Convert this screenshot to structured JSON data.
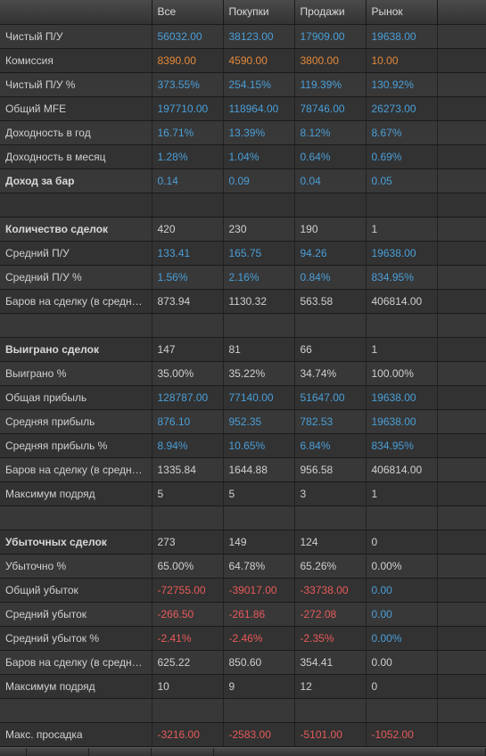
{
  "headers": [
    "Все",
    "Покупки",
    "Продажи",
    "Рынок"
  ],
  "rows": [
    {
      "label": "Чистый П/У",
      "bold": false,
      "vals": [
        {
          "t": "56032.00",
          "c": "blue"
        },
        {
          "t": "38123.00",
          "c": "blue"
        },
        {
          "t": "17909.00",
          "c": "blue"
        },
        {
          "t": "19638.00",
          "c": "blue"
        }
      ]
    },
    {
      "label": "Комиссия",
      "bold": false,
      "vals": [
        {
          "t": "8390.00",
          "c": "orange"
        },
        {
          "t": "4590.00",
          "c": "orange"
        },
        {
          "t": "3800.00",
          "c": "orange"
        },
        {
          "t": "10.00",
          "c": "orange"
        }
      ]
    },
    {
      "label": "Чистый П/У %",
      "bold": false,
      "vals": [
        {
          "t": "373.55%",
          "c": "blue"
        },
        {
          "t": "254.15%",
          "c": "blue"
        },
        {
          "t": "119.39%",
          "c": "blue"
        },
        {
          "t": "130.92%",
          "c": "blue"
        }
      ]
    },
    {
      "label": "Общий MFE",
      "bold": false,
      "vals": [
        {
          "t": "197710.00",
          "c": "blue"
        },
        {
          "t": "118964.00",
          "c": "blue"
        },
        {
          "t": "78746.00",
          "c": "blue"
        },
        {
          "t": "26273.00",
          "c": "blue"
        }
      ]
    },
    {
      "label": "Доходность в год",
      "bold": false,
      "vals": [
        {
          "t": "16.71%",
          "c": "blue"
        },
        {
          "t": "13.39%",
          "c": "blue"
        },
        {
          "t": "8.12%",
          "c": "blue"
        },
        {
          "t": "8.67%",
          "c": "blue"
        }
      ]
    },
    {
      "label": "Доходность в месяц",
      "bold": false,
      "vals": [
        {
          "t": "1.28%",
          "c": "blue"
        },
        {
          "t": "1.04%",
          "c": "blue"
        },
        {
          "t": "0.64%",
          "c": "blue"
        },
        {
          "t": "0.69%",
          "c": "blue"
        }
      ]
    },
    {
      "label": "Доход за бар",
      "bold": true,
      "vals": [
        {
          "t": "0.14",
          "c": "blue"
        },
        {
          "t": "0.09",
          "c": "blue"
        },
        {
          "t": "0.04",
          "c": "blue"
        },
        {
          "t": "0.05",
          "c": "blue"
        }
      ]
    },
    {
      "label": "",
      "bold": false,
      "vals": []
    },
    {
      "label": "Количество сделок",
      "bold": true,
      "vals": [
        {
          "t": "420",
          "c": "white"
        },
        {
          "t": "230",
          "c": "white"
        },
        {
          "t": "190",
          "c": "white"
        },
        {
          "t": "1",
          "c": "white"
        }
      ]
    },
    {
      "label": "Средний П/У",
      "bold": false,
      "vals": [
        {
          "t": "133.41",
          "c": "blue"
        },
        {
          "t": "165.75",
          "c": "blue"
        },
        {
          "t": "94.26",
          "c": "blue"
        },
        {
          "t": "19638.00",
          "c": "blue"
        }
      ]
    },
    {
      "label": "Средний П/У %",
      "bold": false,
      "vals": [
        {
          "t": "1.56%",
          "c": "blue"
        },
        {
          "t": "2.16%",
          "c": "blue"
        },
        {
          "t": "0.84%",
          "c": "blue"
        },
        {
          "t": "834.95%",
          "c": "blue"
        }
      ]
    },
    {
      "label": "Баров на сделку (в среднем)",
      "bold": false,
      "vals": [
        {
          "t": "873.94",
          "c": "white"
        },
        {
          "t": "1130.32",
          "c": "white"
        },
        {
          "t": "563.58",
          "c": "white"
        },
        {
          "t": "406814.00",
          "c": "white"
        }
      ]
    },
    {
      "label": "",
      "bold": false,
      "vals": []
    },
    {
      "label": "Выиграно сделок",
      "bold": true,
      "vals": [
        {
          "t": "147",
          "c": "white"
        },
        {
          "t": "81",
          "c": "white"
        },
        {
          "t": "66",
          "c": "white"
        },
        {
          "t": "1",
          "c": "white"
        }
      ]
    },
    {
      "label": "Выиграно %",
      "bold": false,
      "vals": [
        {
          "t": "35.00%",
          "c": "white"
        },
        {
          "t": "35.22%",
          "c": "white"
        },
        {
          "t": "34.74%",
          "c": "white"
        },
        {
          "t": "100.00%",
          "c": "white"
        }
      ]
    },
    {
      "label": "Общая прибыль",
      "bold": false,
      "vals": [
        {
          "t": "128787.00",
          "c": "blue"
        },
        {
          "t": "77140.00",
          "c": "blue"
        },
        {
          "t": "51647.00",
          "c": "blue"
        },
        {
          "t": "19638.00",
          "c": "blue"
        }
      ]
    },
    {
      "label": "Средняя прибыль",
      "bold": false,
      "vals": [
        {
          "t": "876.10",
          "c": "blue"
        },
        {
          "t": "952.35",
          "c": "blue"
        },
        {
          "t": "782.53",
          "c": "blue"
        },
        {
          "t": "19638.00",
          "c": "blue"
        }
      ]
    },
    {
      "label": "Средняя прибыль %",
      "bold": false,
      "vals": [
        {
          "t": "8.94%",
          "c": "blue"
        },
        {
          "t": "10.65%",
          "c": "blue"
        },
        {
          "t": "6.84%",
          "c": "blue"
        },
        {
          "t": "834.95%",
          "c": "blue"
        }
      ]
    },
    {
      "label": "Баров на сделку (в среднем)",
      "bold": false,
      "vals": [
        {
          "t": "1335.84",
          "c": "white"
        },
        {
          "t": "1644.88",
          "c": "white"
        },
        {
          "t": "956.58",
          "c": "white"
        },
        {
          "t": "406814.00",
          "c": "white"
        }
      ]
    },
    {
      "label": "Максимум подряд",
      "bold": false,
      "vals": [
        {
          "t": "5",
          "c": "white"
        },
        {
          "t": "5",
          "c": "white"
        },
        {
          "t": "3",
          "c": "white"
        },
        {
          "t": "1",
          "c": "white"
        }
      ]
    },
    {
      "label": "",
      "bold": false,
      "vals": []
    },
    {
      "label": "Убыточных сделок",
      "bold": true,
      "vals": [
        {
          "t": "273",
          "c": "white"
        },
        {
          "t": "149",
          "c": "white"
        },
        {
          "t": "124",
          "c": "white"
        },
        {
          "t": "0",
          "c": "white"
        }
      ]
    },
    {
      "label": "Убыточно %",
      "bold": false,
      "vals": [
        {
          "t": "65.00%",
          "c": "white"
        },
        {
          "t": "64.78%",
          "c": "white"
        },
        {
          "t": "65.26%",
          "c": "white"
        },
        {
          "t": "0.00%",
          "c": "white"
        }
      ]
    },
    {
      "label": "Общий убыток",
      "bold": false,
      "vals": [
        {
          "t": "-72755.00",
          "c": "red"
        },
        {
          "t": "-39017.00",
          "c": "red"
        },
        {
          "t": "-33738.00",
          "c": "red"
        },
        {
          "t": "0.00",
          "c": "blue"
        }
      ]
    },
    {
      "label": "Средний убыток",
      "bold": false,
      "vals": [
        {
          "t": "-266.50",
          "c": "red"
        },
        {
          "t": "-261.86",
          "c": "red"
        },
        {
          "t": "-272.08",
          "c": "red"
        },
        {
          "t": "0.00",
          "c": "blue"
        }
      ]
    },
    {
      "label": "Средний убыток %",
      "bold": false,
      "vals": [
        {
          "t": "-2.41%",
          "c": "red"
        },
        {
          "t": "-2.46%",
          "c": "red"
        },
        {
          "t": "-2.35%",
          "c": "red"
        },
        {
          "t": "0.00%",
          "c": "blue"
        }
      ]
    },
    {
      "label": "Баров на сделку (в среднем)",
      "bold": false,
      "vals": [
        {
          "t": "625.22",
          "c": "white"
        },
        {
          "t": "850.60",
          "c": "white"
        },
        {
          "t": "354.41",
          "c": "white"
        },
        {
          "t": "0.00",
          "c": "white"
        }
      ]
    },
    {
      "label": "Максимум подряд",
      "bold": false,
      "vals": [
        {
          "t": "10",
          "c": "white"
        },
        {
          "t": "9",
          "c": "white"
        },
        {
          "t": "12",
          "c": "white"
        },
        {
          "t": "0",
          "c": "white"
        }
      ]
    },
    {
      "label": "",
      "bold": false,
      "vals": []
    },
    {
      "label": "Макс. просадка",
      "bold": false,
      "vals": [
        {
          "t": "-3216.00",
          "c": "red"
        },
        {
          "t": "-2583.00",
          "c": "red"
        },
        {
          "t": "-5101.00",
          "c": "red"
        },
        {
          "t": "-1052.00",
          "c": "red"
        }
      ]
    }
  ],
  "colors": {
    "blue": "#4a9fd8",
    "orange": "#e68a3a",
    "red": "#e85a5a",
    "white": "#d0d0d0"
  }
}
